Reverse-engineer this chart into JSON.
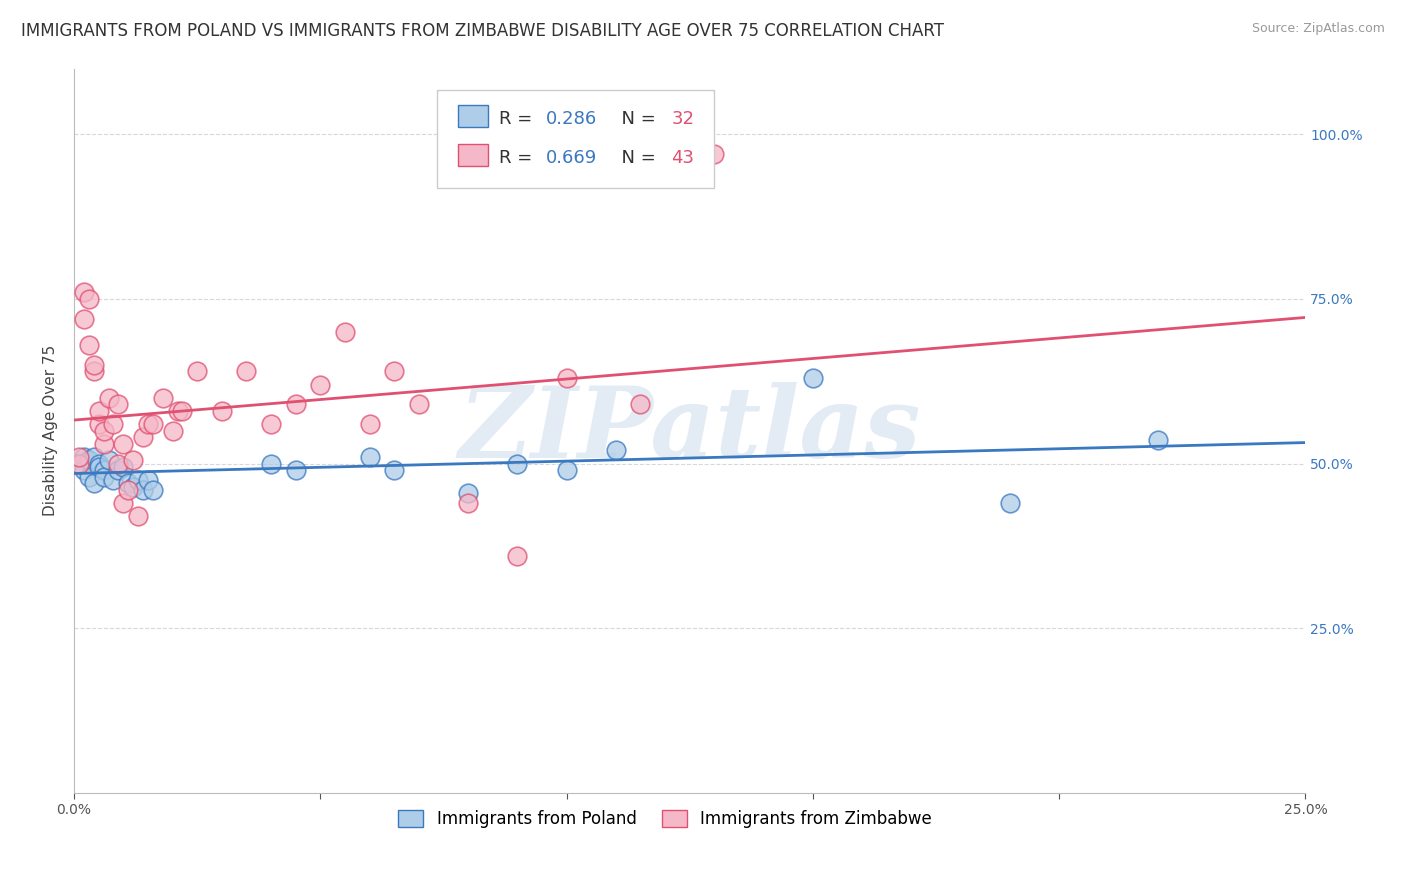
{
  "title": "IMMIGRANTS FROM POLAND VS IMMIGRANTS FROM ZIMBABWE DISABILITY AGE OVER 75 CORRELATION CHART",
  "source": "Source: ZipAtlas.com",
  "ylabel": "Disability Age Over 75",
  "xlim": [
    0.0,
    0.25
  ],
  "ylim": [
    0.0,
    1.1
  ],
  "xtick_pos": [
    0.0,
    0.05,
    0.1,
    0.15,
    0.2,
    0.25
  ],
  "xtick_labels": [
    "0.0%",
    "",
    "",
    "",
    "",
    "25.0%"
  ],
  "ytick_positions_right": [
    0.25,
    0.5,
    0.75,
    1.0
  ],
  "ytick_labels_right": [
    "25.0%",
    "50.0%",
    "75.0%",
    "100.0%"
  ],
  "poland_color": "#aecde8",
  "zimbabwe_color": "#f5b8c8",
  "poland_line_color": "#3a78c0",
  "zimbabwe_line_color": "#e05070",
  "r_n_color": "#3a78c0",
  "n_val_color": "#e05070",
  "background_color": "#ffffff",
  "watermark": "ZIPatlas",
  "watermark_color": "#c8d8ea",
  "grid_color": "#d8d8d8",
  "legend_r_poland": "R = 0.286",
  "legend_n_poland": "N = 32",
  "legend_r_zimbabwe": "R = 0.669",
  "legend_n_zimbabwe": "N = 43",
  "poland_x": [
    0.001,
    0.002,
    0.002,
    0.003,
    0.003,
    0.004,
    0.004,
    0.005,
    0.005,
    0.006,
    0.006,
    0.007,
    0.008,
    0.009,
    0.01,
    0.011,
    0.012,
    0.013,
    0.014,
    0.015,
    0.016,
    0.04,
    0.045,
    0.06,
    0.065,
    0.08,
    0.09,
    0.1,
    0.11,
    0.15,
    0.19,
    0.22
  ],
  "poland_y": [
    0.5,
    0.51,
    0.49,
    0.505,
    0.48,
    0.51,
    0.47,
    0.5,
    0.495,
    0.49,
    0.48,
    0.505,
    0.475,
    0.49,
    0.495,
    0.47,
    0.465,
    0.475,
    0.46,
    0.475,
    0.46,
    0.5,
    0.49,
    0.51,
    0.49,
    0.455,
    0.5,
    0.49,
    0.52,
    0.63,
    0.44,
    0.535
  ],
  "zimbabwe_x": [
    0.001,
    0.001,
    0.002,
    0.002,
    0.003,
    0.003,
    0.004,
    0.004,
    0.005,
    0.005,
    0.006,
    0.006,
    0.007,
    0.008,
    0.009,
    0.009,
    0.01,
    0.01,
    0.011,
    0.012,
    0.013,
    0.014,
    0.015,
    0.016,
    0.018,
    0.02,
    0.021,
    0.022,
    0.025,
    0.03,
    0.035,
    0.04,
    0.045,
    0.05,
    0.055,
    0.06,
    0.065,
    0.07,
    0.08,
    0.09,
    0.1,
    0.115,
    0.13
  ],
  "zimbabwe_y": [
    0.5,
    0.51,
    0.72,
    0.76,
    0.68,
    0.75,
    0.64,
    0.65,
    0.56,
    0.58,
    0.53,
    0.55,
    0.6,
    0.56,
    0.59,
    0.5,
    0.53,
    0.44,
    0.46,
    0.505,
    0.42,
    0.54,
    0.56,
    0.56,
    0.6,
    0.55,
    0.58,
    0.58,
    0.64,
    0.58,
    0.64,
    0.56,
    0.59,
    0.62,
    0.7,
    0.56,
    0.64,
    0.59,
    0.44,
    0.36,
    0.63,
    0.59,
    0.97
  ],
  "title_fontsize": 12,
  "axis_fontsize": 11,
  "tick_fontsize": 10,
  "legend_fontsize": 13
}
